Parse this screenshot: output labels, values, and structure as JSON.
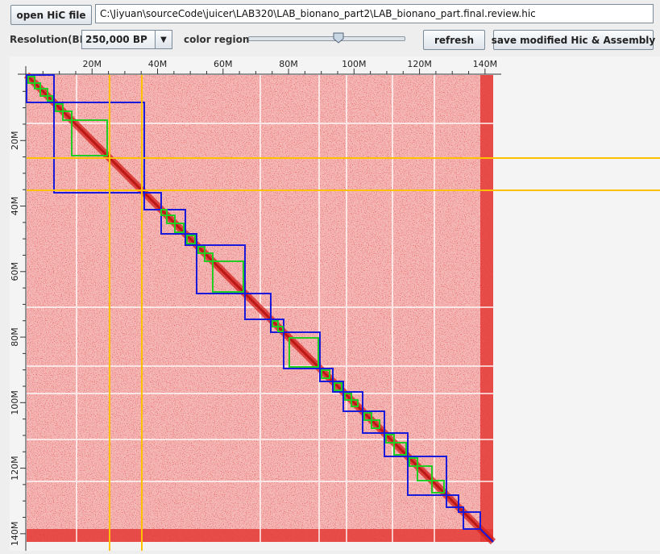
{
  "toolbar": {
    "open_label": "open HiC file",
    "file_path": "C:\\Jiyuan\\sourceCode\\juicer\\LAB320\\LAB_bionano_part2\\LAB_bionano_part.final.review.hic",
    "resolution_label": "Resolution(BP)",
    "resolution_value": "250,000 BP",
    "color_region_label": "color region",
    "color_region_level": 0.58,
    "refresh_label": "refresh",
    "save_label": "save modified Hic & Assembly"
  },
  "heatmap": {
    "x_ticks": [
      "20M",
      "40M",
      "60M",
      "80M",
      "100M",
      "120M",
      "140M"
    ],
    "y_ticks": [
      "20M",
      "40M",
      "60M",
      "80M",
      "100M",
      "120M",
      "140M"
    ],
    "colors": {
      "contact": "#e8322f",
      "scaffold_box": "#1a1adb",
      "contig_box": "#22cc22",
      "selection": "#ffc000"
    }
  }
}
